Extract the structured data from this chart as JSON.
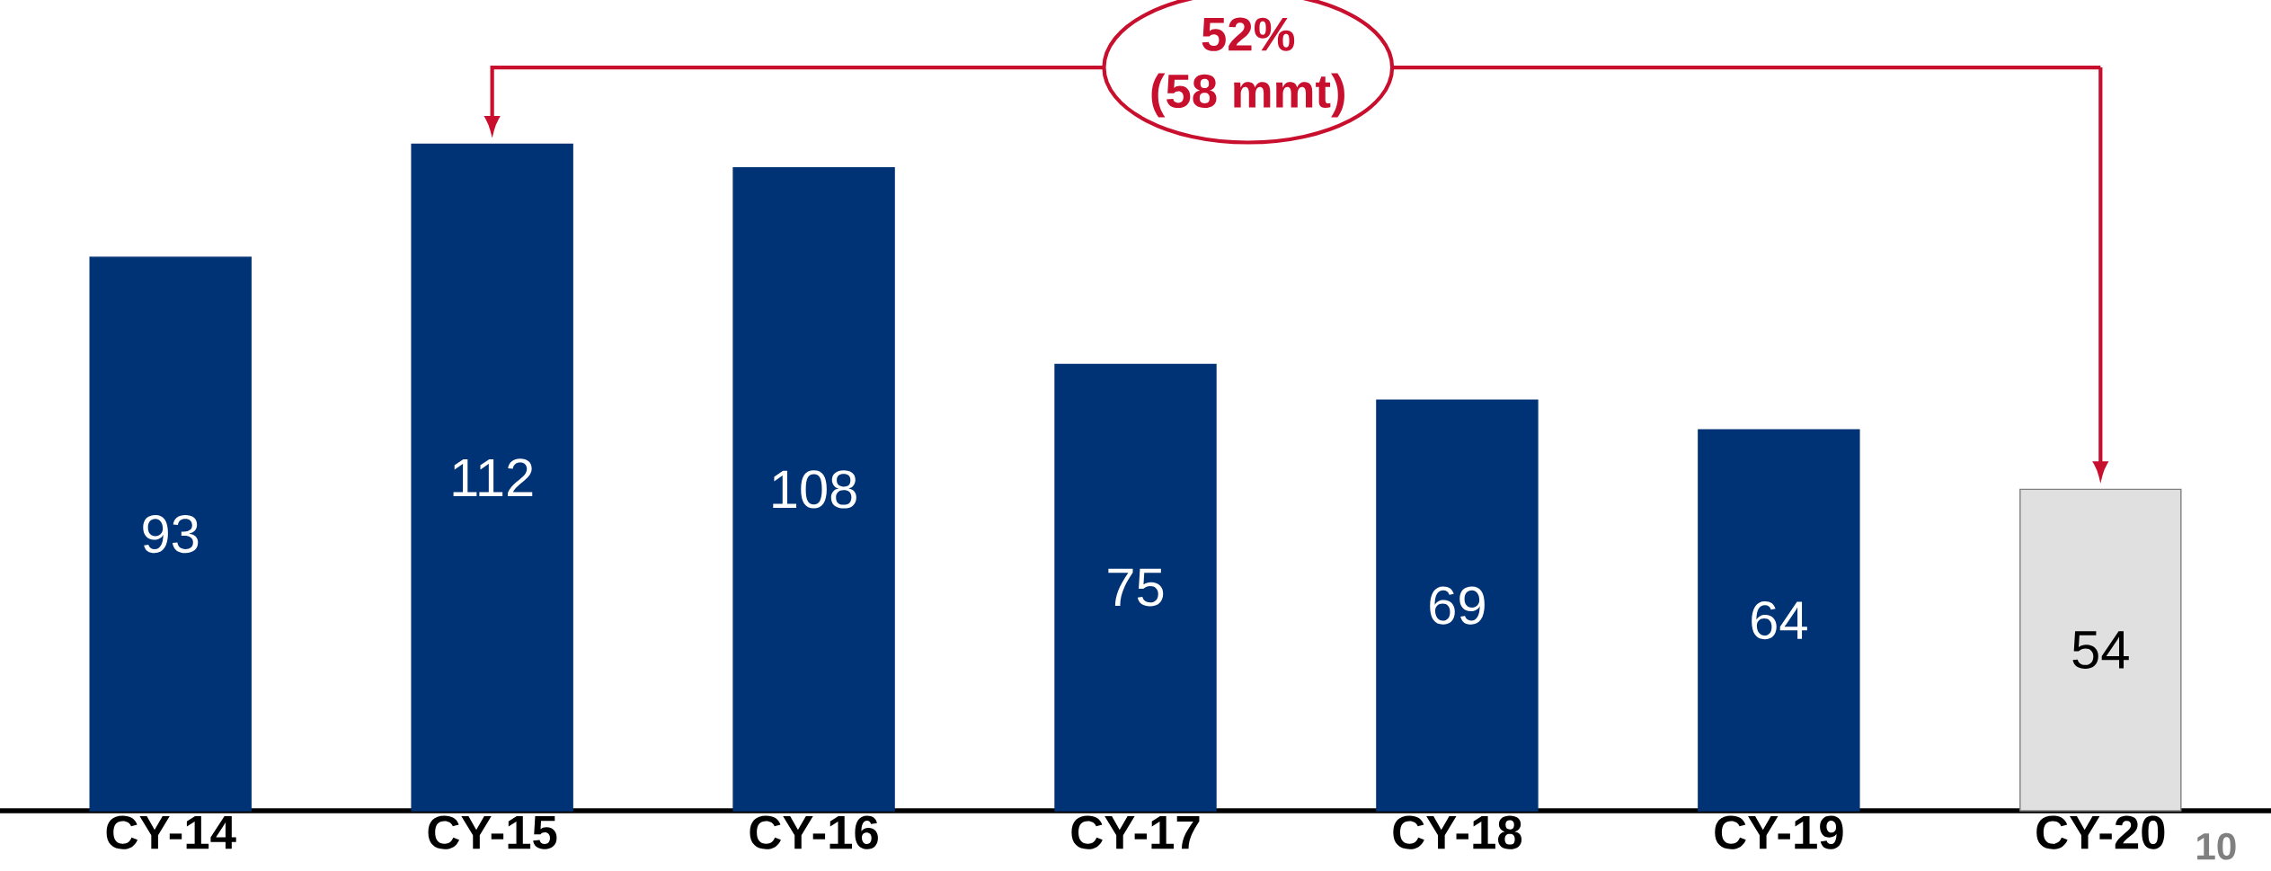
{
  "chart_data": {
    "type": "bar",
    "categories": [
      "CY-14",
      "CY-15",
      "CY-16",
      "CY-17",
      "CY-18",
      "CY-19",
      "CY-20"
    ],
    "values": [
      93,
      112,
      108,
      75,
      69,
      64,
      54
    ],
    "colors": [
      "#003375",
      "#003375",
      "#003375",
      "#003375",
      "#003375",
      "#003375",
      "#e0e0e0"
    ],
    "data_labels": true,
    "annotations": [
      "52%",
      "(58 mmt)",
      "10"
    ]
  }
}
